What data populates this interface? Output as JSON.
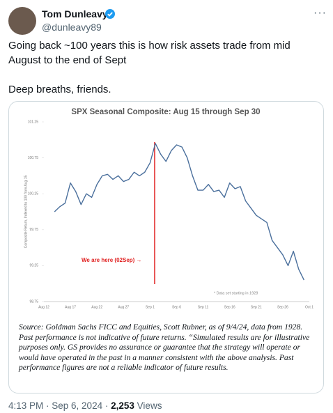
{
  "author": {
    "name": "Tom Dunleavy",
    "handle": "@dunleavy89"
  },
  "tweet": {
    "paragraphs": [
      "Going back ~100 years this is how risk assets trade from mid August to the end of Sept",
      "Deep breaths, friends."
    ]
  },
  "chart_data": {
    "type": "line",
    "title": "SPX Seasonal Composite: Aug 15 through Sep 30",
    "y_label": "Composite Return, Indexed to 100 from Aug 15",
    "annotations": [
      "We are here (02Sep) →",
      "* Data set starting in 1928"
    ],
    "categories": [
      "Aug 12",
      null,
      null,
      null,
      null,
      "Aug 17",
      null,
      null,
      null,
      null,
      "Aug 22",
      null,
      null,
      null,
      null,
      "Aug 27",
      null,
      null,
      null,
      null,
      "Sep 1",
      null,
      null,
      null,
      null,
      "Sep 6",
      null,
      null,
      null,
      null,
      "Sep 11",
      null,
      null,
      null,
      null,
      "Sep 16",
      null,
      null,
      null,
      null,
      "Sep 21",
      null,
      null,
      null,
      null,
      "Sep 26",
      null,
      null,
      null,
      null,
      "Oct 1"
    ],
    "series": [
      {
        "name": "SPX Seasonal Composite",
        "color": "#4a6f9c",
        "values": [
          null,
          null,
          100.0,
          100.07,
          100.12,
          100.4,
          100.28,
          100.1,
          100.25,
          100.2,
          100.38,
          100.5,
          100.52,
          100.45,
          100.5,
          100.42,
          100.45,
          100.55,
          100.5,
          100.55,
          100.68,
          100.95,
          100.8,
          100.7,
          100.85,
          100.93,
          100.9,
          100.75,
          100.5,
          100.3,
          100.3,
          100.38,
          100.28,
          100.3,
          100.2,
          100.4,
          100.32,
          100.35,
          100.15,
          100.05,
          99.95,
          99.9,
          99.85,
          99.6,
          99.5,
          99.4,
          99.25,
          99.45,
          99.2,
          99.05,
          null
        ]
      }
    ],
    "ylim": [
      98.75,
      101.25
    ],
    "yticks": [
      98.75,
      99.25,
      99.75,
      100.25,
      100.75,
      101.25
    ],
    "grid": false,
    "source": "Source: Goldman Sachs FICC and Equities, Scott Rubner, as of 9/4/24, data from 1928. Past performance is not indicative of future returns. “Simulated results are for illustrative purposes only. GS provides no assurance or guarantee that the strategy will operate or would have operated in the past in a manner consistent with the above analysis. Past performance figures are not a reliable indicator of future results."
  },
  "footer": {
    "timestamp": "4:13 PM · Sep 6, 2024 ·",
    "views": "2,253",
    "views_label": "Views"
  }
}
